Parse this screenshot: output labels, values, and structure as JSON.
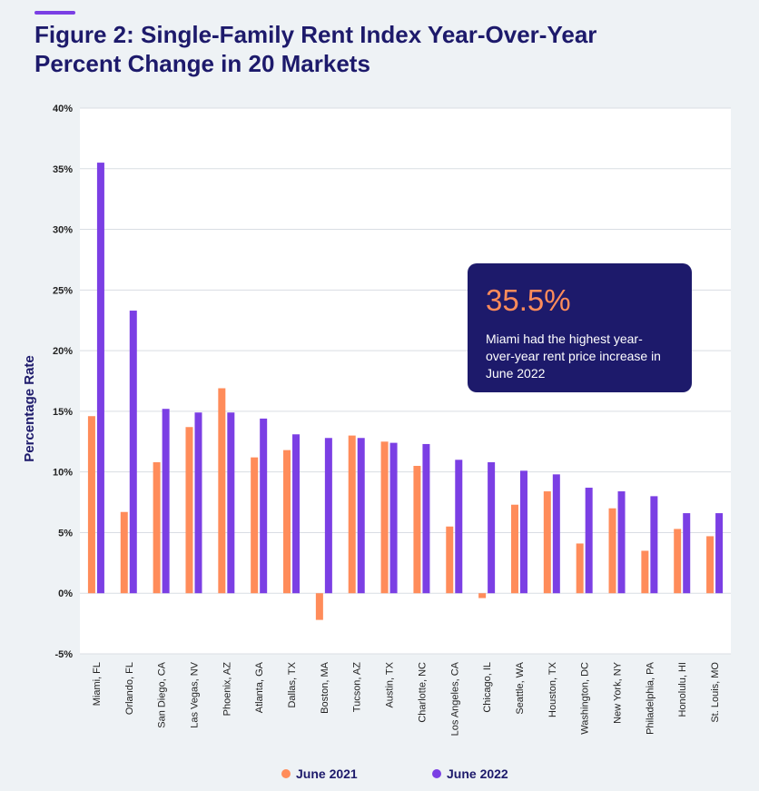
{
  "title_line1": "Figure 2: Single-Family Rent Index Year-Over-Year",
  "title_line2": "Percent Change in 20 Markets",
  "callout": {
    "value": "35.5%",
    "text": "Miami had the highest year-over-year rent price increase in June 2022"
  },
  "colors": {
    "june2021": "#ff8c5a",
    "june2022": "#7b3fe4",
    "title": "#1d1a6b",
    "callout_bg": "#1d1a6b",
    "accent": "#7b3fe4"
  },
  "chart_data": {
    "type": "bar",
    "title": "Figure 2: Single-Family Rent Index Year-Over-Year Percent Change in 20 Markets",
    "xlabel": "",
    "ylabel": "Percentage Rate",
    "ylim": [
      -5,
      40
    ],
    "yticks": [
      "-5%",
      "0%",
      "5%",
      "10%",
      "15%",
      "20%",
      "25%",
      "30%",
      "35%",
      "40%"
    ],
    "ytick_values": [
      -5,
      0,
      5,
      10,
      15,
      20,
      25,
      30,
      35,
      40
    ],
    "grid": true,
    "legend_position": "bottom",
    "categories": [
      "Miami, FL",
      "Orlando, FL",
      "San Diego, CA",
      "Las Vegas, NV",
      "Phoenix, AZ",
      "Atlanta, GA",
      "Dallas, TX",
      "Boston, MA",
      "Tucson, AZ",
      "Austin, TX",
      "Charlotte, NC",
      "Los Angeles, CA",
      "Chicago, IL",
      "Seattle, WA",
      "Houston, TX",
      "Washington, DC",
      "New York, NY",
      "Philadelphia, PA",
      "Honolulu, HI",
      "St. Louis, MO"
    ],
    "series": [
      {
        "name": "June 2021",
        "color": "#ff8c5a",
        "values": [
          14.6,
          6.7,
          10.8,
          13.7,
          16.9,
          11.2,
          11.8,
          -2.2,
          13.0,
          12.5,
          10.5,
          5.5,
          -0.4,
          7.3,
          8.4,
          4.1,
          7.0,
          3.5,
          5.3,
          4.7
        ]
      },
      {
        "name": "June 2022",
        "color": "#7b3fe4",
        "values": [
          35.5,
          23.3,
          15.2,
          14.9,
          14.9,
          14.4,
          13.1,
          12.8,
          12.8,
          12.4,
          12.3,
          11.0,
          10.8,
          10.1,
          9.8,
          8.7,
          8.4,
          8.0,
          6.6,
          6.6
        ]
      }
    ]
  }
}
